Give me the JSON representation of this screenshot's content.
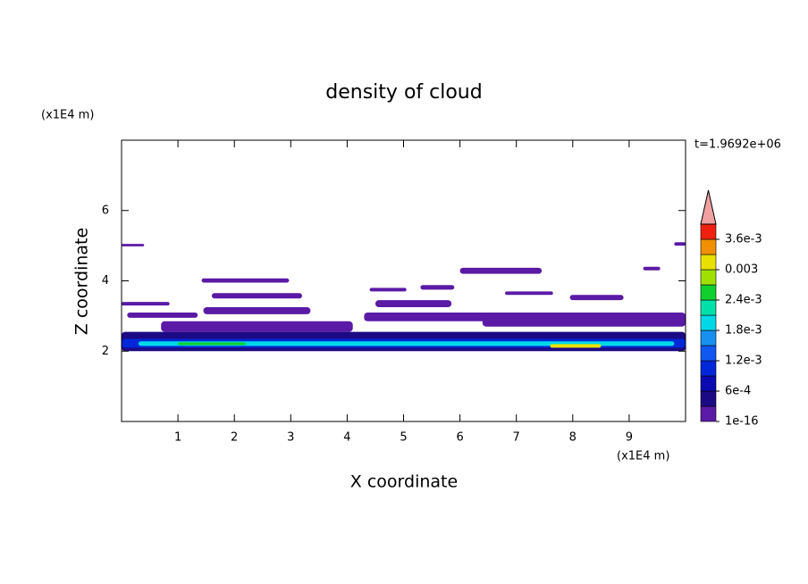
{
  "chart_data": {
    "type": "contour",
    "title": "density of cloud",
    "xlabel": "X coordinate",
    "ylabel": "Z coordinate",
    "xunit": "(x1E4 m)",
    "yunit": "(x1E4 m)",
    "time_label": "t=1.9692e+06",
    "xlim": [
      0,
      10
    ],
    "ylim": [
      0,
      8
    ],
    "xticks": [
      1,
      2,
      3,
      4,
      5,
      6,
      7,
      8,
      9
    ],
    "yticks": [
      2,
      4,
      6
    ],
    "levels": [
      1e-16,
      0.0003,
      0.0006,
      0.0009,
      0.0012,
      0.0015,
      0.0018,
      0.0021,
      0.0024,
      0.0027,
      0.003,
      0.0033,
      0.0036,
      0.0039
    ],
    "colors": [
      "#5a1aa6",
      "#1c0a84",
      "#0a0ab0",
      "#0028d8",
      "#1058f0",
      "#1890f0",
      "#00d8e8",
      "#00e0a8",
      "#10d030",
      "#a0e000",
      "#e8e000",
      "#f09000",
      "#f02010"
    ],
    "extend_color": "#f0a0a0",
    "colorbar_ticks": [
      {
        "value": 1e-16,
        "label": "1e-16"
      },
      {
        "value": 0.0006,
        "label": "6e-4"
      },
      {
        "value": 0.0012,
        "label": "1.2e-3"
      },
      {
        "value": 0.0018,
        "label": "1.8e-3"
      },
      {
        "value": 0.0024,
        "label": "2.4e-3"
      },
      0.003,
      {
        "value": 0.0036,
        "label": "3.6e-3"
      }
    ],
    "regions": [
      {
        "x": [
          0,
          10
        ],
        "z": [
          2.0,
          2.55
        ],
        "value": 0.0003
      },
      {
        "x": [
          0,
          10
        ],
        "z": [
          2.1,
          2.35
        ],
        "value": 0.0009
      },
      {
        "x": [
          0.3,
          9.8
        ],
        "z": [
          2.15,
          2.28
        ],
        "value": 0.0018
      },
      {
        "x": [
          1.0,
          2.2
        ],
        "z": [
          2.17,
          2.25
        ],
        "value": 0.0024
      },
      {
        "x": [
          7.6,
          8.5
        ],
        "z": [
          2.1,
          2.2
        ],
        "value": 0.003
      },
      {
        "x": [
          0,
          0.4
        ],
        "z": [
          4.98,
          5.05
        ],
        "value": 1e-16
      },
      {
        "x": [
          1.42,
          2.97
        ],
        "z": [
          3.95,
          4.07
        ],
        "value": 1e-16
      },
      {
        "x": [
          1.6,
          3.2
        ],
        "z": [
          3.5,
          3.65
        ],
        "value": 1e-16
      },
      {
        "x": [
          0,
          0.85
        ],
        "z": [
          3.3,
          3.4
        ],
        "value": 1e-16
      },
      {
        "x": [
          0.1,
          1.35
        ],
        "z": [
          2.95,
          3.1
        ],
        "value": 1e-16
      },
      {
        "x": [
          1.45,
          3.35
        ],
        "z": [
          3.05,
          3.25
        ],
        "value": 1e-16
      },
      {
        "x": [
          0.7,
          4.1
        ],
        "z": [
          2.55,
          2.85
        ],
        "value": 1e-16
      },
      {
        "x": [
          4.4,
          5.05
        ],
        "z": [
          3.7,
          3.8
        ],
        "value": 1e-16
      },
      {
        "x": [
          5.3,
          5.9
        ],
        "z": [
          3.75,
          3.88
        ],
        "value": 1e-16
      },
      {
        "x": [
          4.5,
          5.85
        ],
        "z": [
          3.25,
          3.45
        ],
        "value": 1e-16
      },
      {
        "x": [
          4.3,
          6.7
        ],
        "z": [
          2.85,
          3.1
        ],
        "value": 1e-16
      },
      {
        "x": [
          6.0,
          7.45
        ],
        "z": [
          4.2,
          4.37
        ],
        "value": 1e-16
      },
      {
        "x": [
          6.8,
          7.65
        ],
        "z": [
          3.6,
          3.7
        ],
        "value": 1e-16
      },
      {
        "x": [
          7.95,
          8.9
        ],
        "z": [
          3.45,
          3.6
        ],
        "value": 1e-16
      },
      {
        "x": [
          6.4,
          10
        ],
        "z": [
          2.7,
          3.1
        ],
        "value": 1e-16
      },
      {
        "x": [
          9.25,
          9.55
        ],
        "z": [
          4.3,
          4.4
        ],
        "value": 1e-16
      },
      {
        "x": [
          9.8,
          10
        ],
        "z": [
          5.0,
          5.1
        ],
        "value": 1e-16
      }
    ]
  }
}
